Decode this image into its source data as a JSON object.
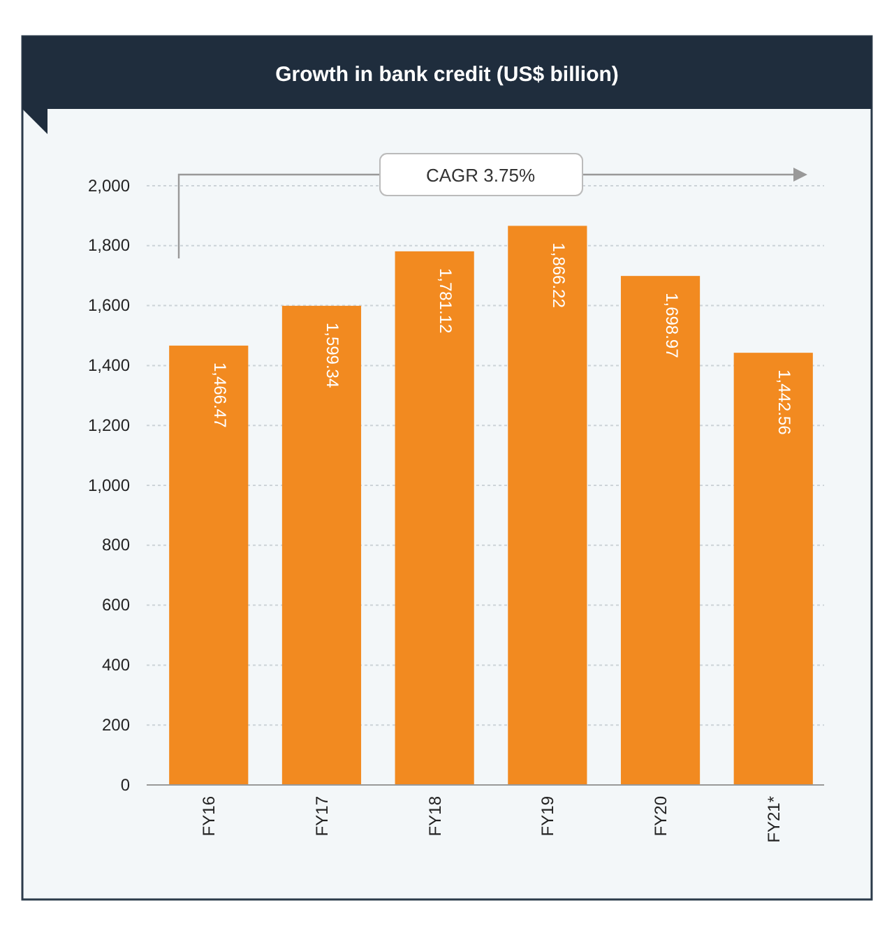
{
  "chart_data": {
    "type": "bar",
    "title": "Growth in bank credit (US$ billion)",
    "categories": [
      "FY16",
      "FY17",
      "FY18",
      "FY19",
      "FY20",
      "FY21*"
    ],
    "values": [
      1466.47,
      1599.34,
      1781.12,
      1866.22,
      1698.97,
      1442.56
    ],
    "value_labels": [
      "1,466.47",
      "1,599.34",
      "1,781.12",
      "1,866.22",
      "1,698.97",
      "1,442.56"
    ],
    "color": "#f28a20",
    "ylim": [
      0,
      2000
    ],
    "yticks": [
      0,
      {
        "value": 200,
        "label": "200"
      },
      {
        "value": 400,
        "label": "400"
      },
      {
        "value": 600,
        "label": "600"
      },
      {
        "value": 800,
        "label": "800"
      },
      {
        "value": 1000,
        "label": "1,000"
      },
      {
        "value": 1200,
        "label": "1,200"
      },
      {
        "value": 1400,
        "label": "1,400"
      },
      {
        "value": 1600,
        "label": "1,600"
      },
      {
        "value": 1800,
        "label": "1,800"
      },
      {
        "value": 2000,
        "label": "2,000"
      }
    ],
    "grid": "y",
    "annotations": [
      "CAGR 3.75%"
    ]
  }
}
